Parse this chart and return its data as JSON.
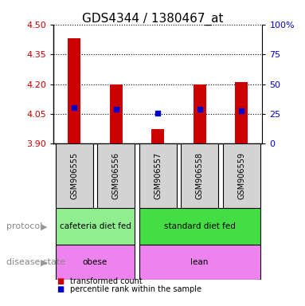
{
  "title": "GDS4344 / 1380467_at",
  "categories": [
    "GSM906555",
    "GSM906556",
    "GSM906557",
    "GSM906558",
    "GSM906559"
  ],
  "bar_values": [
    4.43,
    4.2,
    3.975,
    4.2,
    4.21
  ],
  "bar_bottom": 3.9,
  "blue_dot_values": [
    4.083,
    4.073,
    4.053,
    4.073,
    4.068
  ],
  "left_ylim": [
    3.9,
    4.5
  ],
  "left_yticks": [
    3.9,
    4.05,
    4.2,
    4.35,
    4.5
  ],
  "right_ylim": [
    0,
    100
  ],
  "right_yticks": [
    0,
    25,
    50,
    75,
    100
  ],
  "right_yticklabels": [
    "0",
    "25",
    "50",
    "75",
    "100%"
  ],
  "bar_color": "#cc0000",
  "dot_color": "#0000cc",
  "protocol_groups": [
    {
      "label": "cafeteria diet fed",
      "indices": [
        0,
        1
      ],
      "color": "#90ee90"
    },
    {
      "label": "standard diet fed",
      "indices": [
        2,
        3,
        4
      ],
      "color": "#44dd44"
    }
  ],
  "disease_groups": [
    {
      "label": "obese",
      "indices": [
        0,
        1
      ],
      "color": "#ee82ee"
    },
    {
      "label": "lean",
      "indices": [
        2,
        3,
        4
      ],
      "color": "#ee82ee"
    }
  ],
  "legend_red_label": "transformed count",
  "legend_blue_label": "percentile rank within the sample",
  "protocol_label": "protocol",
  "disease_label": "disease state",
  "title_fontsize": 11,
  "tick_fontsize": 8,
  "label_fontsize": 8,
  "row_fontsize": 8
}
